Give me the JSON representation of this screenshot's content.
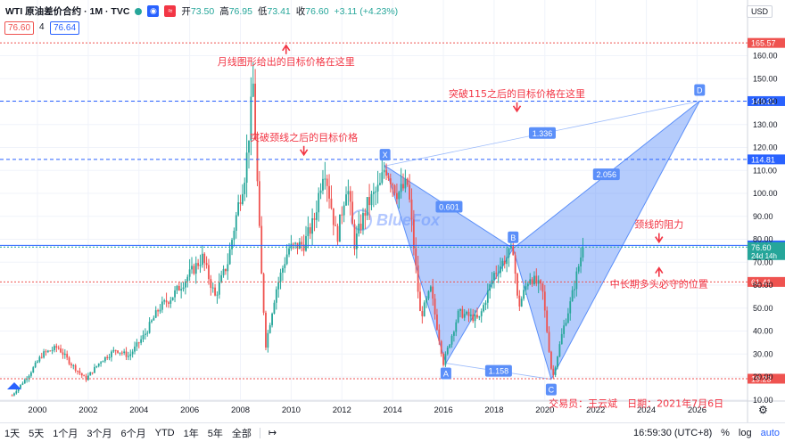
{
  "legend": {
    "symbol": "WTI 原油差价合约 · 1M · TVC",
    "ohlc": [
      {
        "label": "开",
        "value": "73.50"
      },
      {
        "label": "高",
        "value": "76.95"
      },
      {
        "label": "低",
        "value": "73.41"
      },
      {
        "label": "收",
        "value": "76.60"
      }
    ],
    "change": "+3.11 (+4.23%)",
    "bid": "76.60",
    "spread": "4",
    "ask": "76.64"
  },
  "currency": "USD",
  "chart_data": {
    "type": "candlestick",
    "x_ticks": [
      "2000",
      "2002",
      "2004",
      "2006",
      "2008",
      "2010",
      "2012",
      "2014",
      "2016",
      "2018",
      "2020",
      "2022",
      "2024",
      "2026"
    ],
    "y_ticks": [
      "10.00",
      "20.00",
      "30.00",
      "40.00",
      "50.00",
      "60.00",
      "70.00",
      "80.00",
      "90.00",
      "100.00",
      "110.00",
      "120.00",
      "130.00",
      "140.00",
      "150.00",
      "160.00"
    ],
    "ylim": [
      5,
      170
    ],
    "price_path": [
      [
        1999.0,
        12
      ],
      [
        1999.6,
        20
      ],
      [
        2000.2,
        30
      ],
      [
        2000.8,
        33
      ],
      [
        2001.3,
        26
      ],
      [
        2001.9,
        19
      ],
      [
        2002.5,
        27
      ],
      [
        2003.1,
        32
      ],
      [
        2003.6,
        29
      ],
      [
        2004.2,
        38
      ],
      [
        2004.8,
        50
      ],
      [
        2005.3,
        55
      ],
      [
        2005.8,
        62
      ],
      [
        2006.5,
        72
      ],
      [
        2007.0,
        55
      ],
      [
        2007.5,
        70
      ],
      [
        2007.9,
        94
      ],
      [
        2008.2,
        110
      ],
      [
        2008.5,
        147
      ],
      [
        2008.8,
        70
      ],
      [
        2009.0,
        34
      ],
      [
        2009.4,
        58
      ],
      [
        2009.9,
        76
      ],
      [
        2010.5,
        78
      ],
      [
        2010.9,
        88
      ],
      [
        2011.3,
        113
      ],
      [
        2011.8,
        80
      ],
      [
        2012.2,
        105
      ],
      [
        2012.5,
        78
      ],
      [
        2013.0,
        95
      ],
      [
        2013.5,
        103
      ],
      [
        2013.7,
        112
      ],
      [
        2014.2,
        100
      ],
      [
        2014.6,
        104
      ],
      [
        2015.1,
        46
      ],
      [
        2015.5,
        58
      ],
      [
        2016.0,
        26
      ],
      [
        2016.6,
        48
      ],
      [
        2017.4,
        45
      ],
      [
        2018.0,
        65
      ],
      [
        2018.75,
        76
      ],
      [
        2018.95,
        50
      ],
      [
        2019.4,
        64
      ],
      [
        2019.9,
        58
      ],
      [
        2020.3,
        19
      ],
      [
        2020.7,
        40
      ],
      [
        2021.0,
        52
      ],
      [
        2021.5,
        76.6
      ]
    ],
    "last_candle": {
      "open": 73.5,
      "high": 76.95,
      "low": 73.41,
      "close": 76.6
    },
    "horizontal_levels": [
      {
        "value": 165.57,
        "label": "165.57",
        "color": "#ef5350",
        "style": "dotted"
      },
      {
        "value": 140.21,
        "label": "140.21",
        "color": "#2962ff",
        "style": "dashed"
      },
      {
        "value": 114.81,
        "label": "114.81",
        "color": "#2962ff",
        "style": "dashed"
      },
      {
        "value": 77.31,
        "label": "77.31",
        "color": "#2962ff",
        "style": "solid"
      },
      {
        "value": 76.6,
        "label": "76.60",
        "sublabel": "24d 14h",
        "color": "#26a69a",
        "style": "dotted"
      },
      {
        "value": 61.41,
        "label": "61.41",
        "color": "#ef5350",
        "style": "dotted"
      },
      {
        "value": 19.23,
        "label": "19.23",
        "color": "#ef5350",
        "style": "dotted"
      }
    ],
    "harmonic_pattern": {
      "points": [
        {
          "name": "X",
          "x": 2013.7,
          "y": 112
        },
        {
          "name": "A",
          "x": 2016.1,
          "y": 26
        },
        {
          "name": "B",
          "x": 2018.75,
          "y": 76
        },
        {
          "name": "C",
          "x": 2020.25,
          "y": 19
        },
        {
          "name": "D",
          "x": 2026.1,
          "y": 140.21
        }
      ],
      "ratios": [
        {
          "label": "0.601",
          "between": "XB"
        },
        {
          "label": "1.336",
          "between": "XD"
        },
        {
          "label": "2.056",
          "between": "BD"
        },
        {
          "label": "1.158",
          "between": "AC"
        }
      ]
    },
    "annotations": [
      {
        "text": "月线图形给出的目标价格在这里",
        "arrow": "up",
        "x": 2009.8,
        "y": 156
      },
      {
        "text": "突破115之后的目标价格在这里",
        "arrow": "down",
        "x": 2018.9,
        "y": 142
      },
      {
        "text": "突破颈线之后的目标价格",
        "arrow": "down",
        "x": 2010.5,
        "y": 123
      },
      {
        "text": "颈线的阻力",
        "arrow": "down",
        "x": 2024.5,
        "y": 85
      },
      {
        "text": "中长期多头必守的位置",
        "arrow": "up",
        "x": 2024.5,
        "y": 59
      },
      {
        "text": "交易员：王云斌　日期：2021年7月6日",
        "arrow": "none",
        "x": 2023.6,
        "y": 7
      }
    ],
    "watermark": "BlueFox"
  },
  "toolbar": {
    "ranges": [
      "1天",
      "5天",
      "1个月",
      "3个月",
      "6个月",
      "YTD",
      "1年",
      "5年",
      "全部"
    ],
    "clock": "16:59:30 (UTC+8)",
    "percent": "%",
    "log": "log",
    "auto": "auto"
  }
}
